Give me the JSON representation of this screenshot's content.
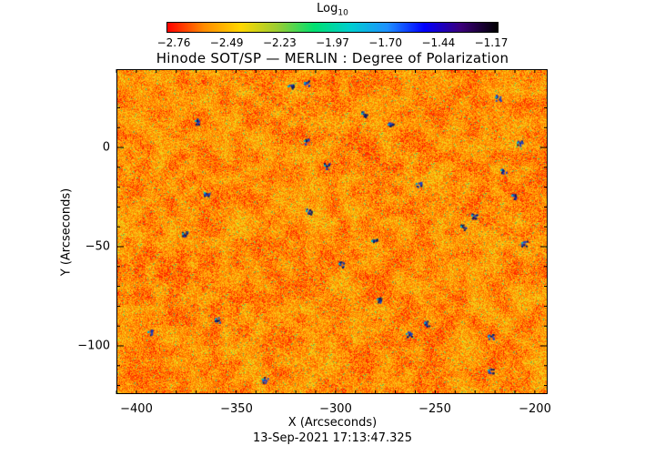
{
  "colorbar": {
    "label_main": "Log",
    "label_sub": "10",
    "ticks": [
      "-2.76",
      "-2.49",
      "-2.23",
      "-1.97",
      "-1.70",
      "-1.44",
      "-1.17"
    ],
    "colors": [
      "#ff0000",
      "#ff8c00",
      "#ffd700",
      "#9acd32",
      "#00e070",
      "#00ced1",
      "#1e90ff",
      "#0000ff",
      "#3b007a",
      "#000000"
    ]
  },
  "title": "Hinode SOT/SP — MERLIN : Degree of Polarization",
  "x_axis": {
    "label": "X (Arcseconds)",
    "ticks": [
      "−400",
      "−350",
      "−300",
      "−250",
      "−200"
    ]
  },
  "y_axis": {
    "label": "Y (Arcseconds)",
    "ticks": [
      "0",
      "−50",
      "−100"
    ]
  },
  "timestamp": "13-Sep-2021 17:13:47.325"
}
